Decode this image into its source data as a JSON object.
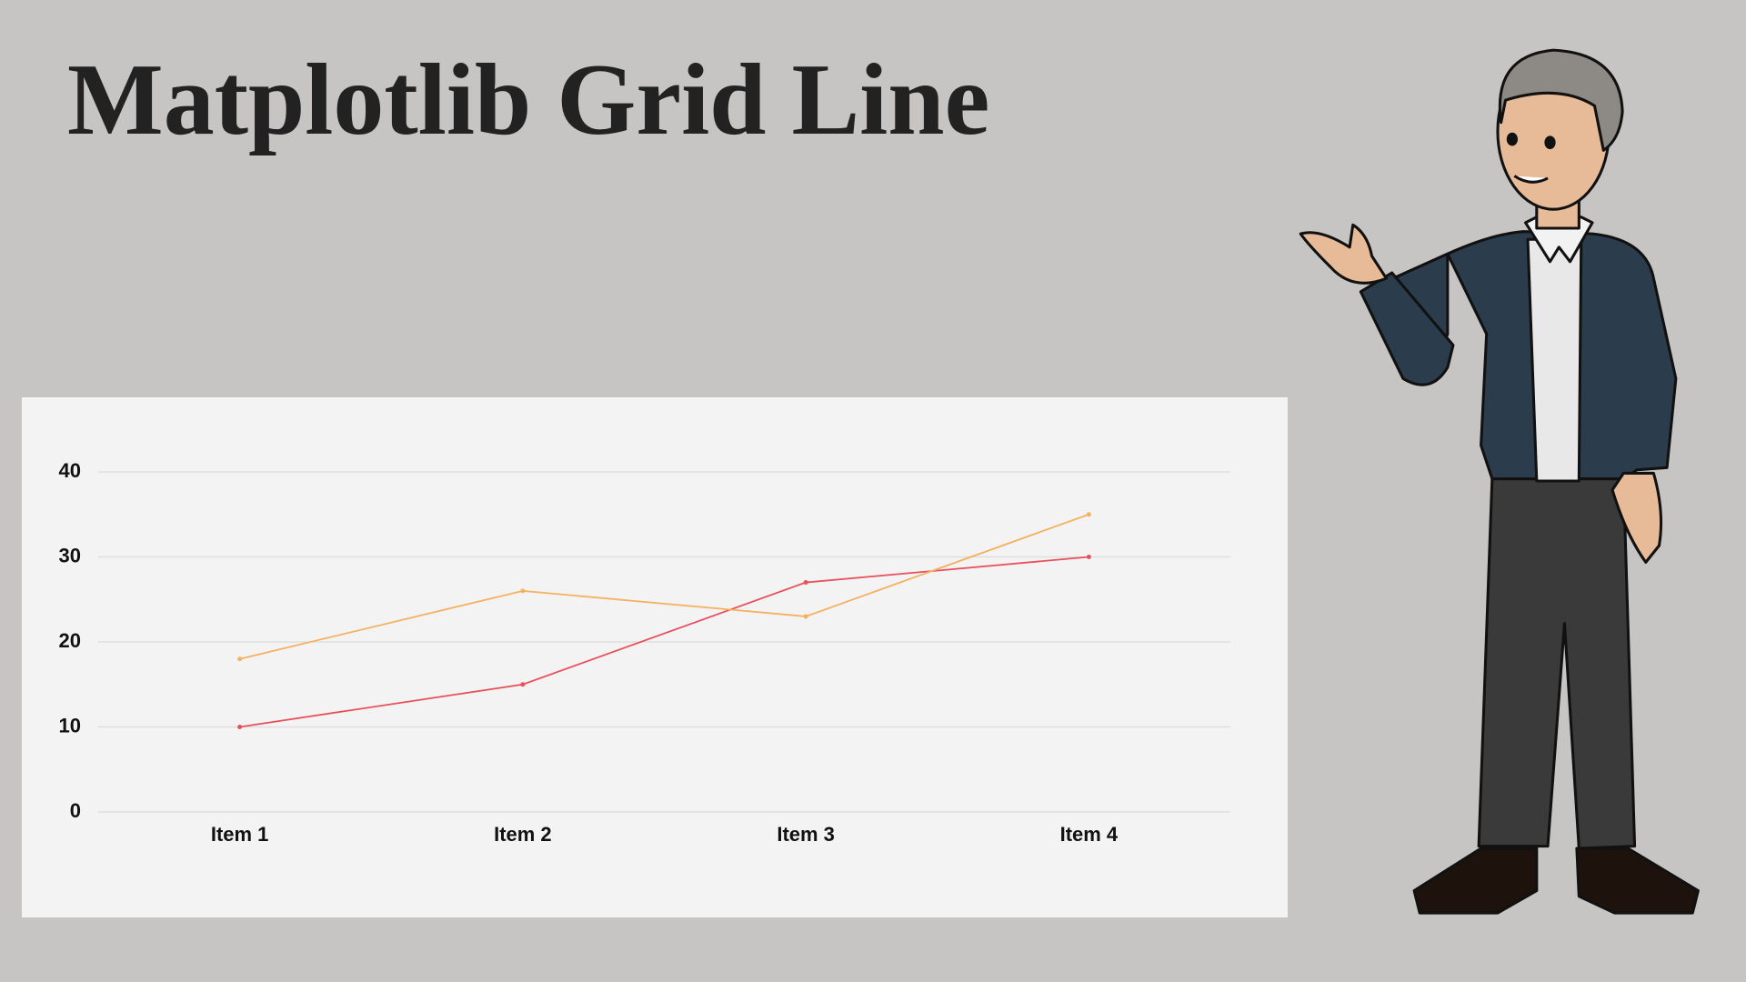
{
  "slide": {
    "title": "Matplotlib Grid Line"
  },
  "chart_data": {
    "type": "line",
    "categories": [
      "Item 1",
      "Item 2",
      "Item 3",
      "Item 4"
    ],
    "series": [
      {
        "color": "#e8505b",
        "values": [
          10,
          15,
          27,
          30
        ]
      },
      {
        "color": "#f5b060",
        "values": [
          18,
          26,
          23,
          35
        ]
      }
    ],
    "ylim": [
      0,
      40
    ],
    "yticks": [
      0,
      10,
      20,
      30,
      40
    ],
    "grid": true
  }
}
